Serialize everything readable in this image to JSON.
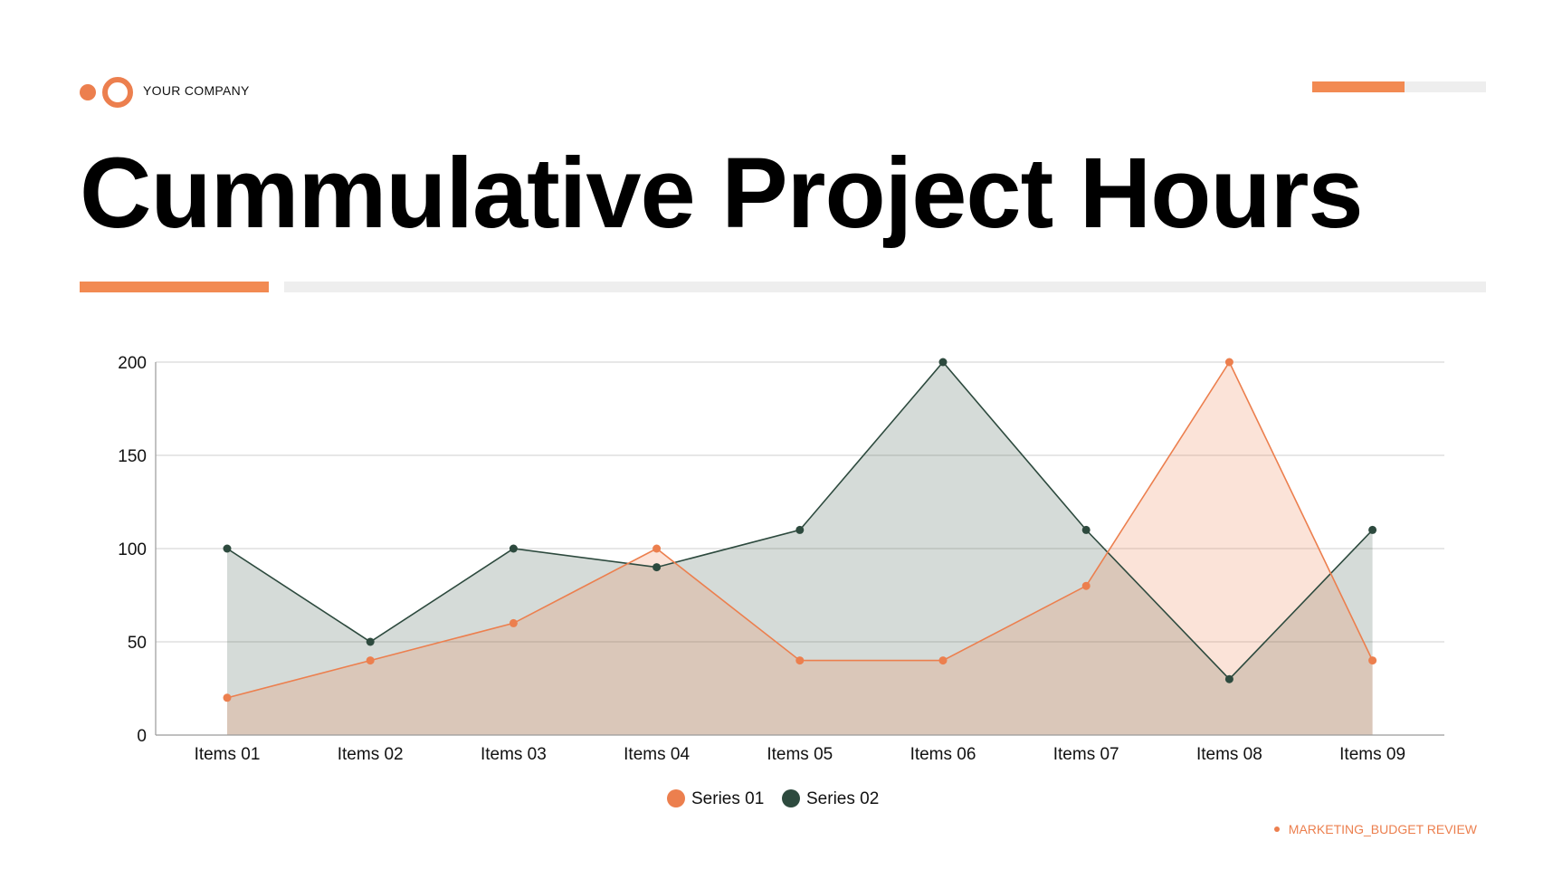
{
  "header": {
    "company": "YOUR COMPANY",
    "title": "Cummulative Project Hours",
    "progress_fraction": 0.53
  },
  "footer": {
    "text": "MARKETING_BUDGET REVIEW"
  },
  "colors": {
    "accent": "#EC7F4E",
    "dark": "#2D4A3E",
    "bar_grey": "#EEEEEE"
  },
  "chart_data": {
    "type": "area",
    "categories": [
      "Items 01",
      "Items 02",
      "Items 03",
      "Items 04",
      "Items 05",
      "Items 06",
      "Items 07",
      "Items 08",
      "Items 09"
    ],
    "series": [
      {
        "name": "Series 01",
        "values": [
          20,
          40,
          60,
          100,
          40,
          40,
          80,
          200,
          40
        ],
        "color": "#EC7F4E"
      },
      {
        "name": "Series 02",
        "values": [
          100,
          50,
          100,
          90,
          110,
          200,
          110,
          30,
          110
        ],
        "color": "#2D4A3E"
      }
    ],
    "ylim": [
      0,
      200
    ],
    "yticks": [
      0,
      50,
      100,
      150,
      200
    ],
    "grid": true,
    "legend": "bottom-center"
  }
}
